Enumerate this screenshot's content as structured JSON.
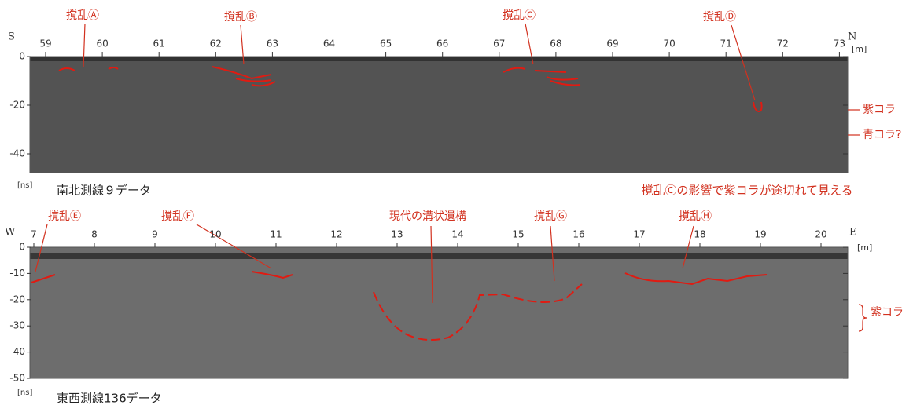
{
  "panels": [
    {
      "left_label": "S",
      "right_label": "N",
      "x_unit": "[m]",
      "y_unit": "[ns]",
      "x_ticks": [
        "59",
        "60",
        "61",
        "62",
        "63",
        "64",
        "65",
        "66",
        "67",
        "68",
        "69",
        "70",
        "71",
        "72",
        "73"
      ],
      "y_ticks": [
        "0",
        "-20",
        "-40"
      ],
      "annotations": [
        "撹乱Ⓐ",
        "撹乱Ⓑ",
        "撹乱Ⓒ",
        "撹乱Ⓓ"
      ],
      "side_labels": [
        "紫コラ",
        "青コラ?"
      ],
      "caption": "南北測線９データ",
      "note": "撹乱Ⓒの影響で紫コラが途切れて見える"
    },
    {
      "left_label": "W",
      "right_label": "E",
      "x_unit": "[m]",
      "y_unit": "[ns]",
      "x_ticks": [
        "7",
        "8",
        "9",
        "10",
        "11",
        "12",
        "13",
        "14",
        "15",
        "16",
        "17",
        "18",
        "19",
        "20"
      ],
      "y_ticks": [
        "0",
        "-10",
        "-20",
        "-30",
        "-40",
        "-50"
      ],
      "annotations": [
        "撹乱Ⓔ",
        "撹乱Ⓕ",
        "現代の溝状遺構",
        "撹乱Ⓖ",
        "撹乱Ⓗ"
      ],
      "side_labels": [
        "紫コラ"
      ],
      "caption": "東西測線136データ"
    }
  ]
}
